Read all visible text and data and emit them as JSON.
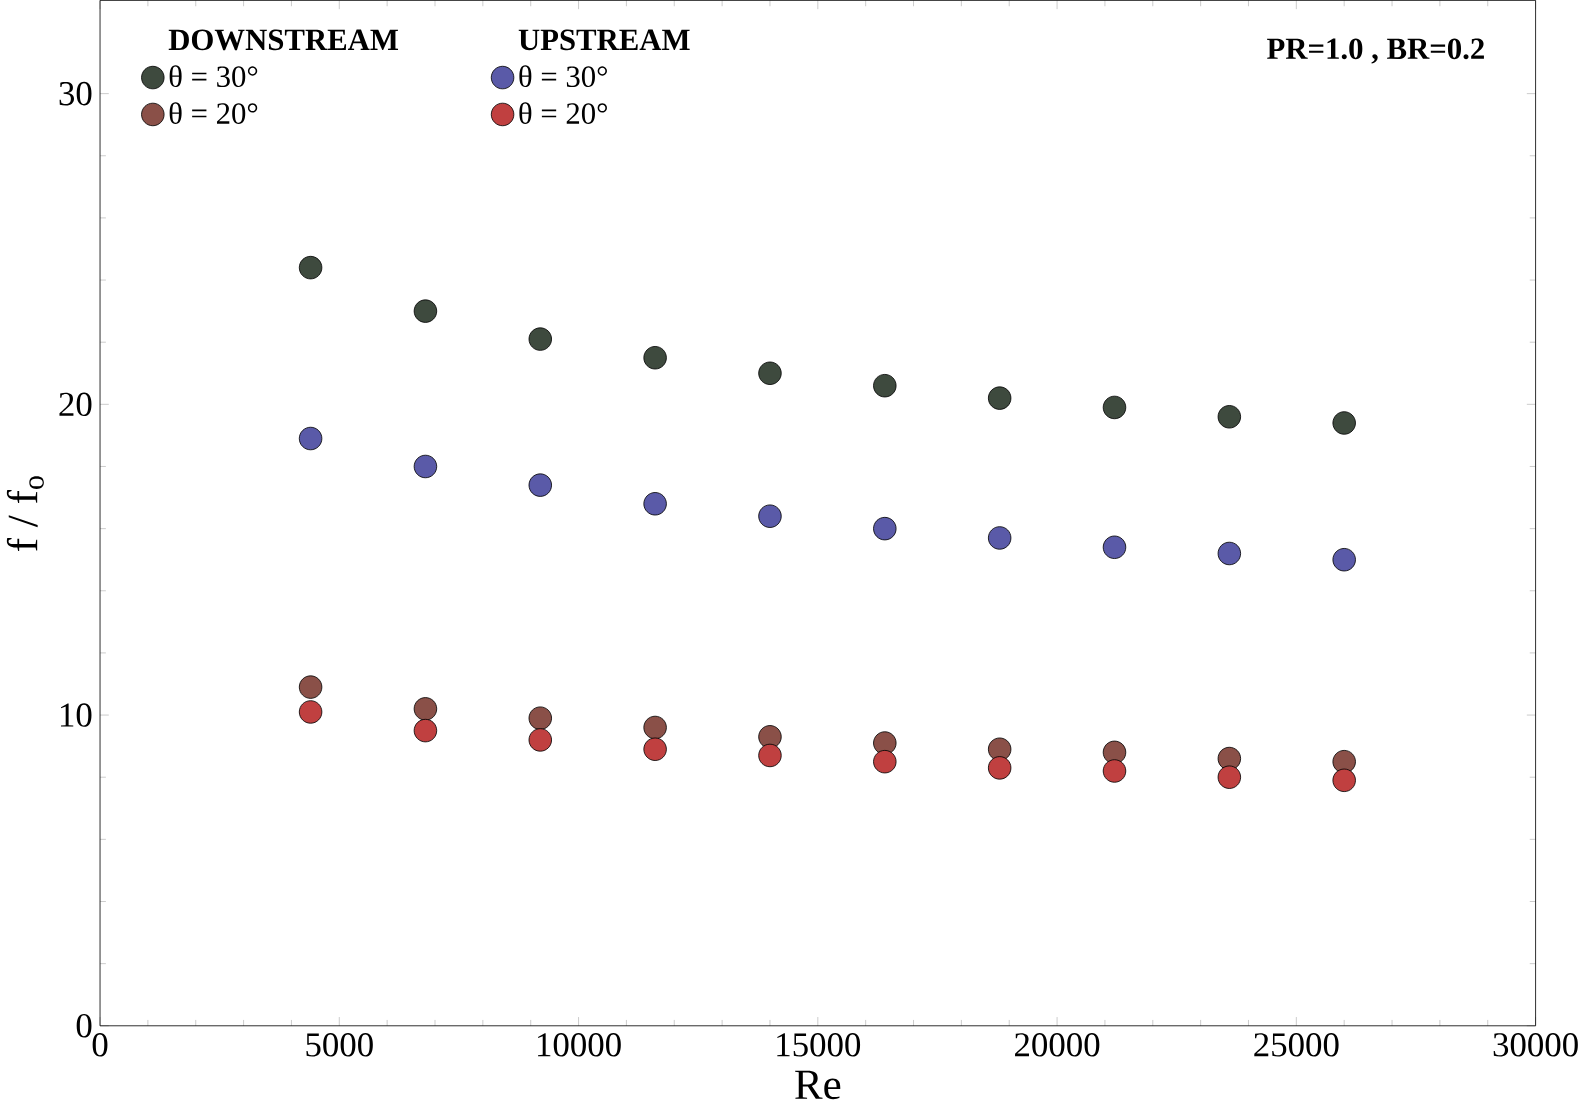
{
  "chart_data": {
    "type": "scatter",
    "xlabel": "Re",
    "ylabel": "f / f$_{o}$",
    "x": [
      4400,
      6800,
      9200,
      11600,
      14000,
      16400,
      18800,
      21200,
      23600,
      26000
    ],
    "series": [
      {
        "name": "θ = 30°",
        "color": "#3e4a3e",
        "values": [
          24.4,
          23.0,
          22.1,
          21.5,
          21.0,
          20.6,
          20.2,
          19.9,
          19.6,
          19.4
        ]
      },
      {
        "name": "θ = 30°",
        "color": "#5a5aa8",
        "values": [
          18.9,
          18.0,
          17.4,
          16.8,
          16.4,
          16.0,
          15.7,
          15.4,
          15.2,
          15.0
        ]
      },
      {
        "name": "θ = 20°",
        "color": "#8a5048",
        "values": [
          10.9,
          10.2,
          9.9,
          9.6,
          9.3,
          9.1,
          8.9,
          8.8,
          8.6,
          8.5
        ]
      },
      {
        "name": "θ = 20°",
        "color": "#c04040",
        "values": [
          10.1,
          9.5,
          9.2,
          8.9,
          8.7,
          8.5,
          8.3,
          8.2,
          8.0,
          7.9
        ]
      }
    ],
    "annotations": [
      "DOWNSTREAM",
      "UPSTREAM",
      "PR=1.0 , BR=0.2"
    ],
    "xlim": [
      0,
      30000
    ],
    "xticks": [
      0,
      5000,
      10000,
      15000,
      20000,
      25000,
      30000
    ],
    "ylim": [
      0,
      33
    ],
    "yticks": [
      0,
      10,
      20,
      30
    ],
    "marker": "circle",
    "legend": "top left",
    "grid": false
  }
}
